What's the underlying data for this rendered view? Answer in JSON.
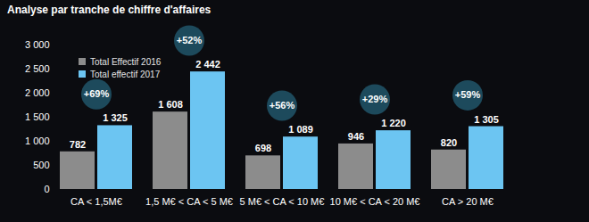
{
  "chart_data": {
    "type": "bar",
    "title": "Analyse par tranche de chiffre d'affaires",
    "categories": [
      "CA < 1,5M€",
      "1,5 M€ < CA < 5 M€",
      "5 M€ < CA < 10 M€",
      "10 M€ < CA < 20 M€",
      "CA > 20 M€"
    ],
    "series": [
      {
        "name": "Total Effectif 2016",
        "color": "#8c8c8c",
        "values": [
          782,
          1608,
          698,
          946,
          820
        ],
        "value_labels": [
          "782",
          "1 608",
          "698",
          "946",
          "820"
        ]
      },
      {
        "name": "Total effectif 2017",
        "color": "#6cc5f2",
        "values": [
          1325,
          2442,
          1089,
          1220,
          1305
        ],
        "value_labels": [
          "1 325",
          "2 442",
          "1 089",
          "1 220",
          "1 305"
        ]
      }
    ],
    "annotations": [
      {
        "category": "CA < 1,5M€",
        "text": "+69%"
      },
      {
        "category": "1,5 M€ < CA < 5 M€",
        "text": "+52%"
      },
      {
        "category": "5 M€ < CA < 10 M€",
        "text": "+56%"
      },
      {
        "category": "10 M€ < CA < 20 M€",
        "text": "+29%"
      },
      {
        "category": "CA > 20 M€",
        "text": "+59%"
      }
    ],
    "ylim": [
      0,
      3000
    ],
    "yticks": [
      0,
      500,
      {
        "value": 1000,
        "label": "1 000"
      },
      {
        "value": 1500,
        "label": "1 500"
      },
      {
        "value": 2000,
        "label": "2 000"
      },
      {
        "value": 2500,
        "label": "2 500"
      },
      {
        "value": 3000,
        "label": "3 000"
      }
    ],
    "grid": false,
    "legend": "top-left",
    "data_labels": true
  }
}
